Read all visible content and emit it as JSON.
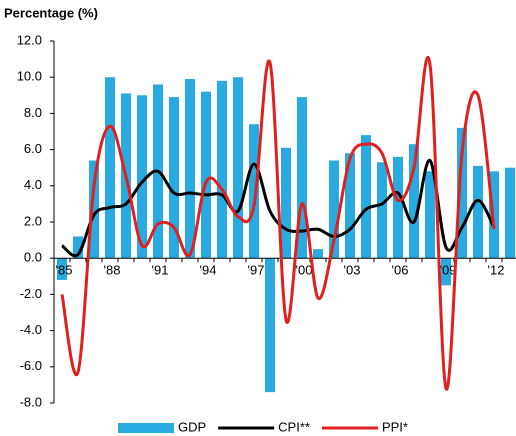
{
  "chart_data": {
    "type": "bar-line",
    "y_label": "Percentage (%)",
    "categories": [
      "'85",
      null,
      null,
      "'88",
      null,
      null,
      "'91",
      null,
      null,
      "'94",
      null,
      null,
      "'97",
      null,
      null,
      "'00",
      null,
      null,
      "'03",
      null,
      null,
      "'06",
      null,
      null,
      "'09",
      null,
      null,
      "'12",
      null
    ],
    "series": [
      {
        "name": "GDP",
        "kind": "bar",
        "color": "#29abe2",
        "values": [
          -1.2,
          1.2,
          5.4,
          10.0,
          9.1,
          9.0,
          9.6,
          8.9,
          9.9,
          9.2,
          9.8,
          10.0,
          7.4,
          -7.4,
          6.1,
          8.9,
          0.5,
          5.4,
          5.8,
          6.8,
          5.3,
          5.6,
          6.3,
          4.8,
          -1.5,
          7.2,
          5.1,
          4.8,
          5.0
        ]
      },
      {
        "name": "CPI**",
        "kind": "line",
        "color": "#000000",
        "values": [
          0.7,
          0.2,
          2.4,
          2.8,
          3.0,
          4.2,
          4.8,
          3.6,
          3.6,
          3.5,
          3.5,
          2.6,
          5.2,
          2.6,
          1.6,
          1.5,
          1.6,
          1.2,
          1.6,
          2.7,
          3.0,
          3.6,
          2.0,
          5.4,
          0.6,
          1.7,
          3.2,
          1.7,
          null
        ]
      },
      {
        "name": "PPI*",
        "kind": "line",
        "color": "#e02020",
        "values": [
          -2.0,
          -6.3,
          4.0,
          7.3,
          4.5,
          0.7,
          1.9,
          1.7,
          0.2,
          4.2,
          3.8,
          2.3,
          2.9,
          10.8,
          -3.4,
          3.0,
          -2.2,
          1.0,
          5.5,
          6.3,
          5.8,
          3.2,
          5.0,
          10.7,
          -7.2,
          5.8,
          9.0,
          1.6,
          null
        ]
      }
    ],
    "ylim": [
      -8,
      12
    ],
    "yticks": [
      {
        "value": -8,
        "label": "-8.0"
      },
      {
        "value": -6,
        "label": "-6.0"
      },
      {
        "value": -4,
        "label": "-4.0"
      },
      {
        "value": -2,
        "label": "-2.0"
      },
      {
        "value": 0,
        "label": "0.0"
      },
      {
        "value": 2,
        "label": "2.0"
      },
      {
        "value": 4,
        "label": "4.0"
      },
      {
        "value": 6,
        "label": "6.0"
      },
      {
        "value": 8,
        "label": "8.0"
      },
      {
        "value": 10,
        "label": "10.0"
      },
      {
        "value": 12,
        "label": "12.0"
      }
    ]
  }
}
